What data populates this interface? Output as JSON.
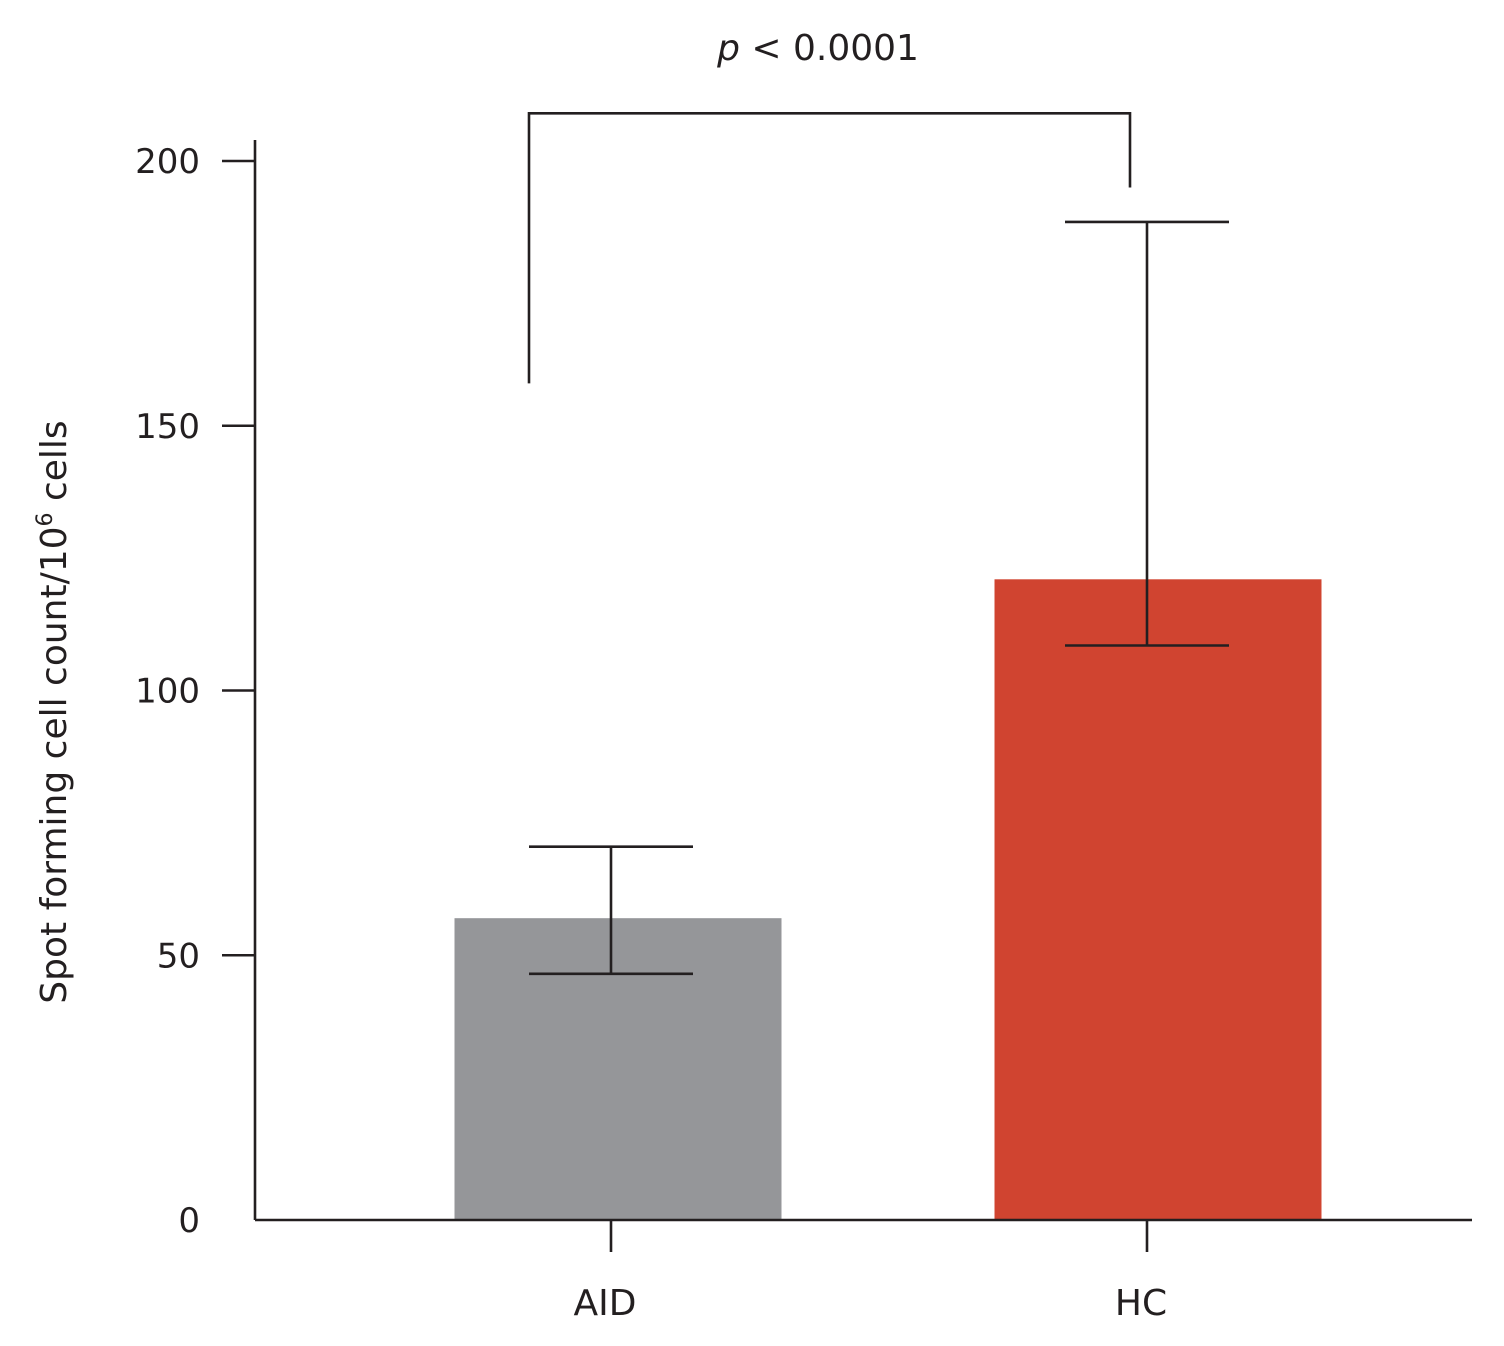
{
  "chart_data": {
    "type": "bar",
    "categories": [
      "AID",
      "HC"
    ],
    "values": [
      57,
      121
    ],
    "error_bars": [
      {
        "low": 46.5,
        "high": 70.5
      },
      {
        "low": 108.5,
        "high": 188.5
      }
    ],
    "colors": [
      "#959699",
      "#d04430"
    ],
    "ylabel": "Spot forming cell count/10",
    "ylabel_superscript": "6",
    "ylabel_suffix": " cells",
    "yticks": [
      0,
      50,
      100,
      150,
      200
    ],
    "ylim": [
      0,
      200
    ],
    "significance": {
      "p_symbol": "p",
      "p_text": " < 0.0001",
      "left_end": 158,
      "right_end": 195,
      "top": 209
    }
  }
}
